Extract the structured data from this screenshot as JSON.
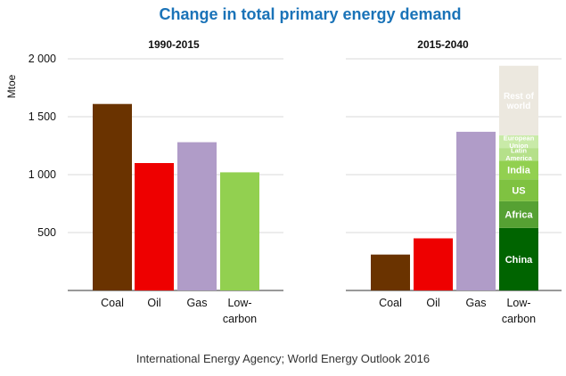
{
  "chart_data": {
    "type": "bar",
    "title": "Change in total primary energy demand",
    "ylabel": "Mtoe",
    "ylim": [
      0,
      2000
    ],
    "yticks": [
      500,
      1000,
      1500,
      2000
    ],
    "ytick_labels": [
      "500",
      "1 000",
      "1 500",
      "2 000"
    ],
    "grid": true,
    "panels": [
      {
        "title": "1990-2015",
        "categories": [
          {
            "label": "Coal",
            "value": 1610,
            "color": "#6a3300"
          },
          {
            "label": "Oil",
            "value": 1100,
            "color": "#ee0000"
          },
          {
            "label": "Gas",
            "value": 1280,
            "color": "#b09cc8"
          },
          {
            "label": "Low-\ncarbon",
            "value": 1020,
            "color": "#92d050"
          }
        ]
      },
      {
        "title": "2015-2040",
        "categories": [
          {
            "label": "Coal",
            "value": 310,
            "color": "#6a3300"
          },
          {
            "label": "Oil",
            "value": 450,
            "color": "#ee0000"
          },
          {
            "label": "Gas",
            "value": 1370,
            "color": "#b09cc8"
          },
          {
            "label": "Low-\ncarbon",
            "stack": [
              {
                "name": "China",
                "value": 540,
                "color": "#006400",
                "text_color": "#ffffff"
              },
              {
                "name": "Africa",
                "value": 230,
                "color": "#56a133",
                "text_color": "#ffffff"
              },
              {
                "name": "US",
                "value": 190,
                "color": "#7fc241",
                "text_color": "#ffffff"
              },
              {
                "name": "India",
                "value": 160,
                "color": "#92d050",
                "text_color": "#ffffff"
              },
              {
                "name": "Latin\nAmerica",
                "value": 110,
                "color": "#b5e08a",
                "text_color": "#1a7a1a"
              },
              {
                "name": "European\nUnion",
                "value": 110,
                "color": "#c9eaa8",
                "text_color": "#1a7a1a"
              },
              {
                "name": "Rest of\nworld",
                "value": 600,
                "color": "#ece8df",
                "text_color": "#8a7a4a"
              }
            ]
          }
        ]
      }
    ]
  },
  "source": "International Energy Agency; World Energy Outlook 2016"
}
